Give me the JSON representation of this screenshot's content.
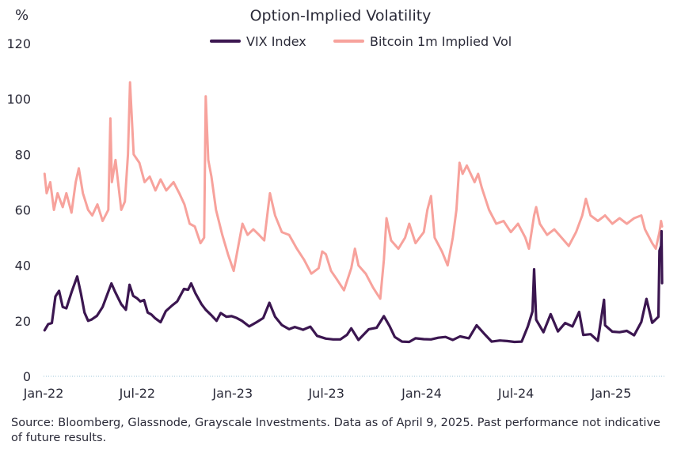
{
  "chart_data": {
    "type": "line",
    "title": "Option-Implied Volatility",
    "ylabel": "%",
    "xlabel": "",
    "ylim": [
      0,
      120
    ],
    "yticks": [
      0,
      20,
      40,
      60,
      80,
      100,
      120
    ],
    "xticks": [
      "Jan-22",
      "Jul-22",
      "Jan-23",
      "Jul-23",
      "Jan-24",
      "Jul-24",
      "Jan-25"
    ],
    "xlim": [
      "2022-01-01",
      "2025-04-15"
    ],
    "legend_position": "top",
    "grid": false,
    "series": [
      {
        "name": "VIX Index",
        "color": "#3b1650",
        "points": [
          [
            "2022-01-03",
            16.6
          ],
          [
            "2022-01-10",
            18.8
          ],
          [
            "2022-01-17",
            19.2
          ],
          [
            "2022-01-24",
            28.8
          ],
          [
            "2022-01-31",
            30.8
          ],
          [
            "2022-02-07",
            25.0
          ],
          [
            "2022-02-14",
            24.5
          ],
          [
            "2022-02-24",
            30.3
          ],
          [
            "2022-03-07",
            36.0
          ],
          [
            "2022-03-14",
            30.0
          ],
          [
            "2022-03-21",
            23.0
          ],
          [
            "2022-03-28",
            20.0
          ],
          [
            "2022-04-04",
            20.5
          ],
          [
            "2022-04-14",
            21.8
          ],
          [
            "2022-04-25",
            25.0
          ],
          [
            "2022-05-05",
            30.0
          ],
          [
            "2022-05-12",
            33.5
          ],
          [
            "2022-05-19",
            30.5
          ],
          [
            "2022-05-31",
            26.0
          ],
          [
            "2022-06-09",
            24.0
          ],
          [
            "2022-06-16",
            33.0
          ],
          [
            "2022-06-23",
            29.0
          ],
          [
            "2022-06-30",
            28.2
          ],
          [
            "2022-07-07",
            27.0
          ],
          [
            "2022-07-14",
            27.5
          ],
          [
            "2022-07-21",
            23.0
          ],
          [
            "2022-07-28",
            22.3
          ],
          [
            "2022-08-04",
            21.0
          ],
          [
            "2022-08-15",
            19.5
          ],
          [
            "2022-08-25",
            23.5
          ],
          [
            "2022-09-06",
            25.5
          ],
          [
            "2022-09-16",
            27.0
          ],
          [
            "2022-09-29",
            31.5
          ],
          [
            "2022-10-07",
            31.2
          ],
          [
            "2022-10-13",
            33.5
          ],
          [
            "2022-10-21",
            30.0
          ],
          [
            "2022-11-02",
            26.0
          ],
          [
            "2022-11-10",
            24.0
          ],
          [
            "2022-11-21",
            22.0
          ],
          [
            "2022-12-01",
            20.0
          ],
          [
            "2022-12-09",
            22.8
          ],
          [
            "2022-12-20",
            21.5
          ],
          [
            "2022-12-30",
            21.7
          ],
          [
            "2023-01-09",
            21.0
          ],
          [
            "2023-01-19",
            20.0
          ],
          [
            "2023-02-02",
            18.0
          ],
          [
            "2023-02-16",
            19.5
          ],
          [
            "2023-03-01",
            21.0
          ],
          [
            "2023-03-13",
            26.5
          ],
          [
            "2023-03-24",
            21.5
          ],
          [
            "2023-04-06",
            18.5
          ],
          [
            "2023-04-20",
            17.0
          ],
          [
            "2023-05-01",
            17.8
          ],
          [
            "2023-05-17",
            16.8
          ],
          [
            "2023-05-31",
            17.9
          ],
          [
            "2023-06-13",
            14.6
          ],
          [
            "2023-06-30",
            13.6
          ],
          [
            "2023-07-14",
            13.3
          ],
          [
            "2023-07-28",
            13.3
          ],
          [
            "2023-08-10",
            15.0
          ],
          [
            "2023-08-18",
            17.3
          ],
          [
            "2023-09-01",
            13.1
          ],
          [
            "2023-09-21",
            17.0
          ],
          [
            "2023-10-06",
            17.5
          ],
          [
            "2023-10-20",
            21.7
          ],
          [
            "2023-10-31",
            18.1
          ],
          [
            "2023-11-10",
            14.2
          ],
          [
            "2023-11-24",
            12.5
          ],
          [
            "2023-12-08",
            12.4
          ],
          [
            "2023-12-20",
            13.7
          ],
          [
            "2024-01-05",
            13.4
          ],
          [
            "2024-01-19",
            13.3
          ],
          [
            "2024-02-02",
            13.9
          ],
          [
            "2024-02-16",
            14.2
          ],
          [
            "2024-03-01",
            13.1
          ],
          [
            "2024-03-15",
            14.4
          ],
          [
            "2024-04-01",
            13.7
          ],
          [
            "2024-04-16",
            18.4
          ],
          [
            "2024-04-30",
            15.5
          ],
          [
            "2024-05-15",
            12.5
          ],
          [
            "2024-05-31",
            12.9
          ],
          [
            "2024-06-14",
            12.7
          ],
          [
            "2024-06-28",
            12.4
          ],
          [
            "2024-07-12",
            12.5
          ],
          [
            "2024-07-24",
            18.0
          ],
          [
            "2024-08-02",
            23.4
          ],
          [
            "2024-08-05",
            38.6
          ],
          [
            "2024-08-09",
            20.4
          ],
          [
            "2024-08-23",
            15.9
          ],
          [
            "2024-09-06",
            22.4
          ],
          [
            "2024-09-20",
            16.2
          ],
          [
            "2024-10-04",
            19.2
          ],
          [
            "2024-10-18",
            18.0
          ],
          [
            "2024-10-31",
            23.2
          ],
          [
            "2024-11-08",
            14.9
          ],
          [
            "2024-11-22",
            15.2
          ],
          [
            "2024-12-06",
            12.8
          ],
          [
            "2024-12-18",
            27.6
          ],
          [
            "2024-12-20",
            18.4
          ],
          [
            "2025-01-03",
            16.1
          ],
          [
            "2025-01-17",
            15.9
          ],
          [
            "2025-01-31",
            16.4
          ],
          [
            "2025-02-14",
            14.8
          ],
          [
            "2025-02-28",
            19.6
          ],
          [
            "2025-03-10",
            27.9
          ],
          [
            "2025-03-21",
            19.3
          ],
          [
            "2025-04-02",
            21.5
          ],
          [
            "2025-04-04",
            45.3
          ],
          [
            "2025-04-07",
            46.98
          ],
          [
            "2025-04-08",
            52.3
          ],
          [
            "2025-04-09",
            33.6
          ]
        ]
      },
      {
        "name": "Bitcoin 1m Implied Vol",
        "color": "#f7a29c",
        "points": [
          [
            "2022-01-03",
            73.0
          ],
          [
            "2022-01-07",
            66.0
          ],
          [
            "2022-01-14",
            70.0
          ],
          [
            "2022-01-21",
            60.0
          ],
          [
            "2022-01-28",
            66.0
          ],
          [
            "2022-02-07",
            61.0
          ],
          [
            "2022-02-14",
            66.0
          ],
          [
            "2022-02-24",
            59.0
          ],
          [
            "2022-03-04",
            70.0
          ],
          [
            "2022-03-10",
            75.0
          ],
          [
            "2022-03-18",
            66.0
          ],
          [
            "2022-03-28",
            60.0
          ],
          [
            "2022-04-05",
            58.0
          ],
          [
            "2022-04-15",
            62.0
          ],
          [
            "2022-04-25",
            56.0
          ],
          [
            "2022-05-06",
            60.0
          ],
          [
            "2022-05-10",
            93.0
          ],
          [
            "2022-05-13",
            70.0
          ],
          [
            "2022-05-20",
            78.0
          ],
          [
            "2022-05-31",
            60.0
          ],
          [
            "2022-06-07",
            63.0
          ],
          [
            "2022-06-13",
            80.0
          ],
          [
            "2022-06-17",
            106.0
          ],
          [
            "2022-06-24",
            80.0
          ],
          [
            "2022-07-05",
            77.0
          ],
          [
            "2022-07-15",
            70.0
          ],
          [
            "2022-07-25",
            72.0
          ],
          [
            "2022-08-05",
            67.0
          ],
          [
            "2022-08-15",
            71.0
          ],
          [
            "2022-08-26",
            67.0
          ],
          [
            "2022-09-09",
            70.0
          ],
          [
            "2022-09-20",
            66.0
          ],
          [
            "2022-09-30",
            62.0
          ],
          [
            "2022-10-10",
            55.0
          ],
          [
            "2022-10-20",
            54.0
          ],
          [
            "2022-10-31",
            48.0
          ],
          [
            "2022-11-07",
            50.0
          ],
          [
            "2022-11-10",
            101.0
          ],
          [
            "2022-11-15",
            78.0
          ],
          [
            "2022-11-21",
            72.0
          ],
          [
            "2022-11-30",
            60.0
          ],
          [
            "2022-12-12",
            51.0
          ],
          [
            "2022-12-23",
            44.0
          ],
          [
            "2023-01-03",
            38.0
          ],
          [
            "2023-01-13",
            48.0
          ],
          [
            "2023-01-20",
            55.0
          ],
          [
            "2023-01-30",
            51.0
          ],
          [
            "2023-02-10",
            53.0
          ],
          [
            "2023-02-21",
            51.0
          ],
          [
            "2023-03-03",
            49.0
          ],
          [
            "2023-03-10",
            60.0
          ],
          [
            "2023-03-14",
            66.0
          ],
          [
            "2023-03-24",
            58.0
          ],
          [
            "2023-04-06",
            52.0
          ],
          [
            "2023-04-20",
            51.0
          ],
          [
            "2023-05-05",
            46.0
          ],
          [
            "2023-05-19",
            42.0
          ],
          [
            "2023-06-02",
            37.0
          ],
          [
            "2023-06-16",
            39.0
          ],
          [
            "2023-06-23",
            45.0
          ],
          [
            "2023-06-30",
            44.0
          ],
          [
            "2023-07-10",
            38.0
          ],
          [
            "2023-07-21",
            35.0
          ],
          [
            "2023-08-04",
            31.0
          ],
          [
            "2023-08-18",
            39.0
          ],
          [
            "2023-08-25",
            46.0
          ],
          [
            "2023-09-01",
            40.0
          ],
          [
            "2023-09-15",
            37.0
          ],
          [
            "2023-09-29",
            32.0
          ],
          [
            "2023-10-06",
            30.0
          ],
          [
            "2023-10-13",
            28.0
          ],
          [
            "2023-10-20",
            42.0
          ],
          [
            "2023-10-25",
            57.0
          ],
          [
            "2023-11-03",
            49.0
          ],
          [
            "2023-11-17",
            46.0
          ],
          [
            "2023-11-30",
            50.0
          ],
          [
            "2023-12-08",
            55.0
          ],
          [
            "2023-12-20",
            48.0
          ],
          [
            "2024-01-05",
            52.0
          ],
          [
            "2024-01-12",
            60.0
          ],
          [
            "2024-01-19",
            65.0
          ],
          [
            "2024-01-26",
            50.0
          ],
          [
            "2024-02-09",
            45.0
          ],
          [
            "2024-02-20",
            40.0
          ],
          [
            "2024-03-01",
            50.0
          ],
          [
            "2024-03-08",
            60.0
          ],
          [
            "2024-03-14",
            77.0
          ],
          [
            "2024-03-20",
            73.0
          ],
          [
            "2024-03-28",
            76.0
          ],
          [
            "2024-04-12",
            70.0
          ],
          [
            "2024-04-19",
            73.0
          ],
          [
            "2024-04-26",
            68.0
          ],
          [
            "2024-05-10",
            60.0
          ],
          [
            "2024-05-24",
            55.0
          ],
          [
            "2024-06-07",
            56.0
          ],
          [
            "2024-06-21",
            52.0
          ],
          [
            "2024-07-05",
            55.0
          ],
          [
            "2024-07-19",
            50.0
          ],
          [
            "2024-07-26",
            46.0
          ],
          [
            "2024-08-05",
            58.0
          ],
          [
            "2024-08-09",
            61.0
          ],
          [
            "2024-08-16",
            55.0
          ],
          [
            "2024-08-30",
            51.0
          ],
          [
            "2024-09-13",
            53.0
          ],
          [
            "2024-09-27",
            50.0
          ],
          [
            "2024-10-11",
            47.0
          ],
          [
            "2024-10-25",
            52.0
          ],
          [
            "2024-11-06",
            58.0
          ],
          [
            "2024-11-13",
            64.0
          ],
          [
            "2024-11-22",
            58.0
          ],
          [
            "2024-12-06",
            56.0
          ],
          [
            "2024-12-20",
            58.0
          ],
          [
            "2025-01-03",
            55.0
          ],
          [
            "2025-01-17",
            57.0
          ],
          [
            "2025-01-31",
            55.0
          ],
          [
            "2025-02-14",
            57.0
          ],
          [
            "2025-02-28",
            58.0
          ],
          [
            "2025-03-07",
            53.0
          ],
          [
            "2025-03-21",
            48.0
          ],
          [
            "2025-03-28",
            46.0
          ],
          [
            "2025-04-04",
            52.0
          ],
          [
            "2025-04-07",
            56.0
          ],
          [
            "2025-04-09",
            54.0
          ]
        ]
      }
    ]
  },
  "source_note": "Source: Bloomberg, Glassnode, Grayscale Investments. Data as of April 9, 2025. Past performance not indicative of future results."
}
